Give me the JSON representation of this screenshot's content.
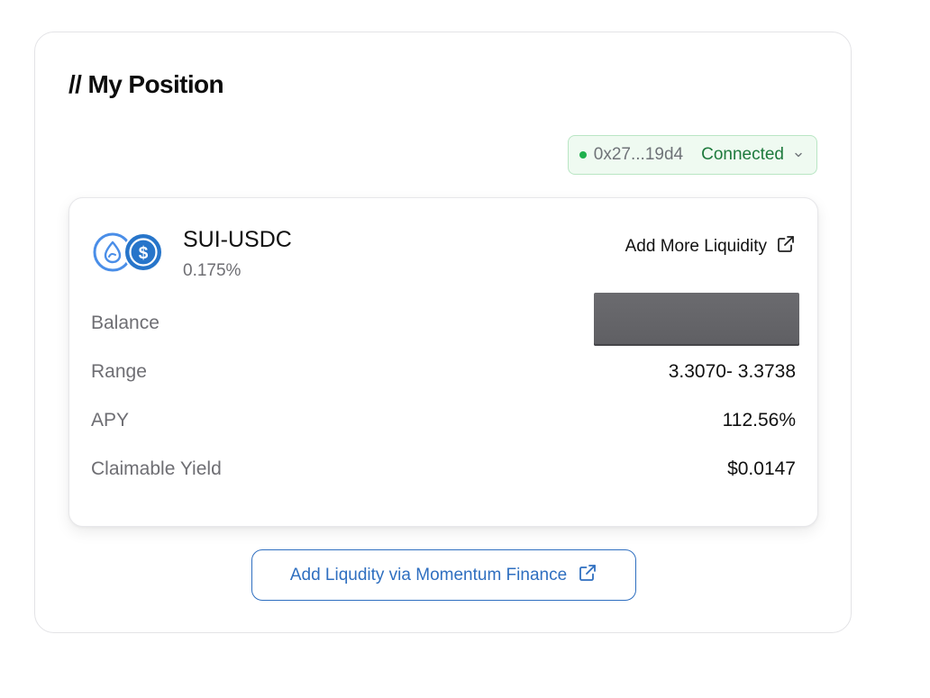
{
  "section": {
    "title": "// My Position"
  },
  "wallet": {
    "address": "0x27...19d4",
    "status": "Connected"
  },
  "position": {
    "pair": "SUI-USDC",
    "fee_tier": "0.175%",
    "add_more_label": "Add More Liquidity",
    "rows": {
      "balance_label": "Balance",
      "range_label": "Range",
      "range_value": "3.3070- 3.3738",
      "apy_label": "APY",
      "apy_value": "112.56%",
      "yield_label": "Claimable Yield",
      "yield_value": "$0.0147"
    }
  },
  "cta": {
    "label": "Add Liqudity via Momentum Finance"
  },
  "colors": {
    "connected_green": "#1fb14d",
    "link_blue": "#2f6fc0",
    "sui_blue": "#4a8ee8",
    "usdc_blue": "#2775ca"
  },
  "icons": [
    "sui-token-icon",
    "usdc-token-icon",
    "external-link-icon",
    "chevron-down-icon",
    "status-dot-icon"
  ]
}
